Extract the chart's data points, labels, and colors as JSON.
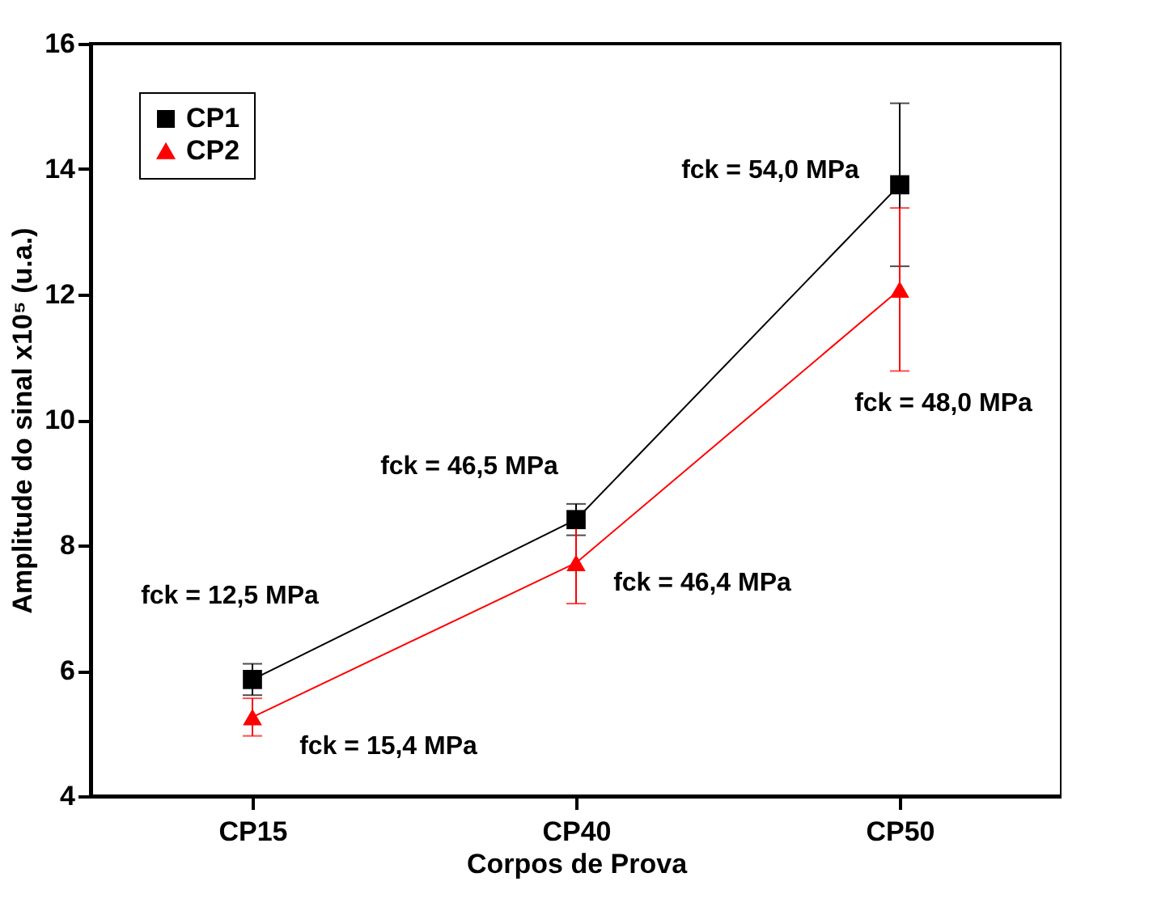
{
  "chart_data": {
    "type": "line",
    "xlabel": "Corpos de Prova",
    "ylabel": "Amplitude do sinal x10⁵ (u.a.)",
    "categories": [
      "CP15",
      "CP40",
      "CP50"
    ],
    "series": [
      {
        "name": "CP1",
        "color": "#000000",
        "marker": "square",
        "values": [
          5.86,
          8.41,
          13.75
        ],
        "errors": [
          0.25,
          0.25,
          1.3
        ]
      },
      {
        "name": "CP2",
        "color": "#ff0000",
        "marker": "triangle",
        "values": [
          5.26,
          7.72,
          12.08
        ],
        "errors": [
          0.3,
          0.65,
          1.3
        ]
      }
    ],
    "ylim": [
      4,
      16
    ],
    "yticks": [
      4,
      6,
      8,
      10,
      12,
      14,
      16
    ],
    "grid": false,
    "legend": "top left",
    "annotations": [
      "fck = 12,5 MPa",
      "fck = 15,4 MPa",
      "fck = 46,5 MPa",
      "fck = 46,4 MPa",
      "fck = 54,0 MPa",
      "fck = 48,0 MPa"
    ]
  }
}
